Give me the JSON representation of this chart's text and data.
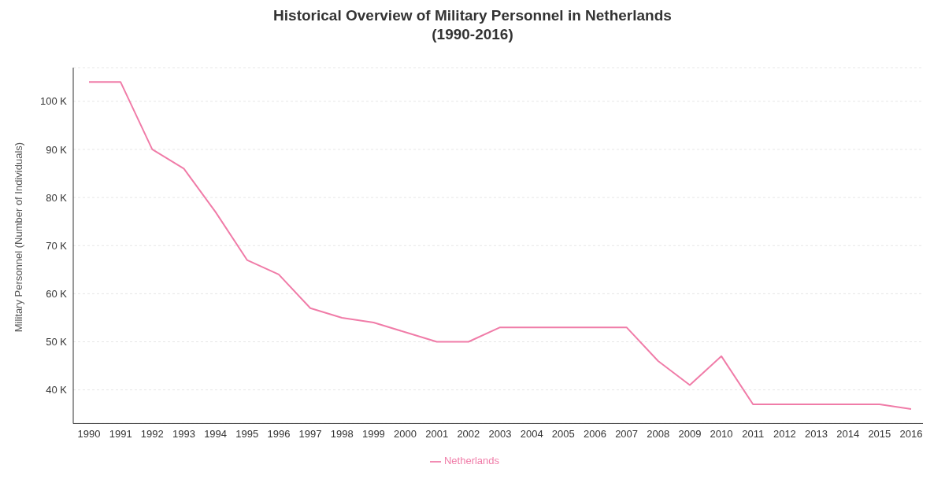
{
  "chart_data": {
    "type": "line",
    "title": "Historical Overview of Military Personnel in Netherlands\n(1990-2016)",
    "ylabel": "Military Personnel (Number of Individuals)",
    "categories": [
      "1990",
      "1991",
      "1992",
      "1993",
      "1994",
      "1995",
      "1996",
      "1997",
      "1998",
      "1999",
      "2000",
      "2001",
      "2002",
      "2003",
      "2004",
      "2005",
      "2006",
      "2007",
      "2008",
      "2009",
      "2010",
      "2011",
      "2012",
      "2013",
      "2014",
      "2015",
      "2016"
    ],
    "series": [
      {
        "name": "Netherlands",
        "color": "#f07ca8",
        "values": [
          104000,
          104000,
          90000,
          86000,
          77000,
          67000,
          64000,
          57000,
          55000,
          54000,
          52000,
          50000,
          50000,
          53000,
          53000,
          53000,
          53000,
          53000,
          46000,
          41000,
          47000,
          37000,
          37000,
          37000,
          37000,
          37000,
          36000
        ]
      }
    ],
    "ylim": [
      33000,
      107000
    ],
    "yticks": [
      {
        "value": 40000,
        "label": "40 K"
      },
      {
        "value": 50000,
        "label": "50 K"
      },
      {
        "value": 60000,
        "label": "60 K"
      },
      {
        "value": 70000,
        "label": "70 K"
      },
      {
        "value": 80000,
        "label": "80 K"
      },
      {
        "value": 90000,
        "label": "90 K"
      },
      {
        "value": 100000,
        "label": "100 K"
      }
    ],
    "grid": "y",
    "legend": "bottom",
    "marker": "none",
    "line_style": "solid"
  }
}
